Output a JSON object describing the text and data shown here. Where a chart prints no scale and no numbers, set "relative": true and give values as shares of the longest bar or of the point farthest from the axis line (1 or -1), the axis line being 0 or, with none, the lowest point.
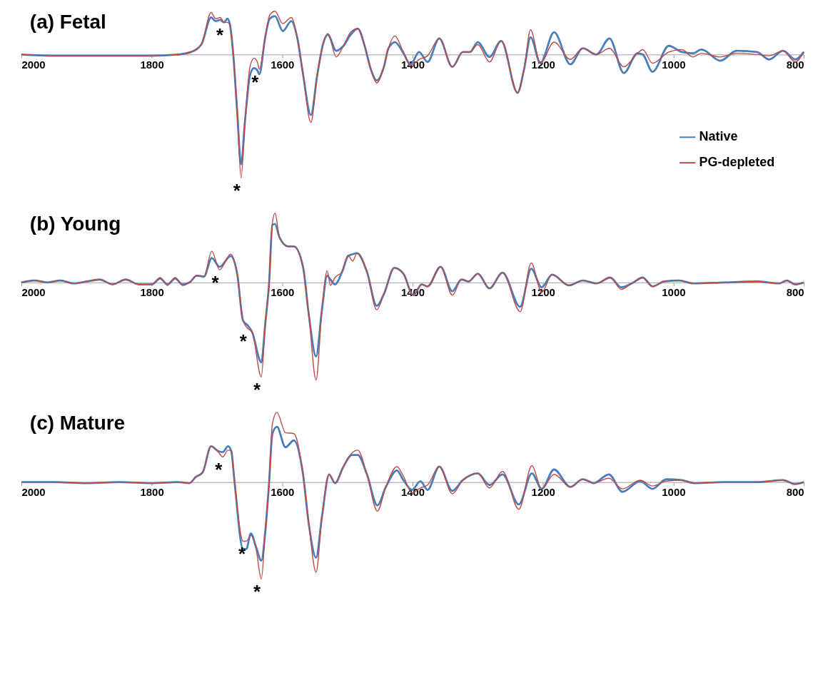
{
  "chart_data": [
    {
      "type": "line",
      "title": "(a) Fetal",
      "relative": true,
      "xlim": [
        2000,
        800
      ],
      "xticks": [
        2000,
        1800,
        1600,
        1400,
        1200,
        1000,
        800
      ],
      "legend": "bottom right",
      "x": [
        2000,
        1950,
        1900,
        1850,
        1800,
        1760,
        1740,
        1724,
        1709,
        1702,
        1695,
        1689,
        1684,
        1680,
        1675,
        1669,
        1663,
        1657,
        1649,
        1643,
        1638,
        1635,
        1626,
        1619,
        1611,
        1599,
        1586,
        1577,
        1568,
        1556,
        1546,
        1537,
        1530,
        1517,
        1506,
        1495,
        1484,
        1473,
        1464,
        1455,
        1444,
        1437,
        1427,
        1415,
        1403,
        1390,
        1377,
        1359,
        1339,
        1323,
        1312,
        1300,
        1282,
        1264,
        1239,
        1229,
        1219,
        1204,
        1183,
        1158,
        1139,
        1118,
        1098,
        1076,
        1055,
        1047,
        1032,
        1007,
        987,
        970,
        957,
        928,
        903,
        872,
        853,
        832,
        813,
        800
      ],
      "series": [
        {
          "name": "Native",
          "color": "#4a7ebb",
          "values": [
            0,
            -0.01,
            -0.01,
            -0.01,
            -0.01,
            0,
            0.02,
            0.08,
            0.3,
            0.27,
            0.28,
            0.26,
            0.29,
            0.24,
            0,
            -0.46,
            -0.89,
            -0.54,
            -0.16,
            -0.11,
            -0.13,
            -0.16,
            0.14,
            0.29,
            0.31,
            0.19,
            0.27,
            0.14,
            -0.16,
            -0.49,
            -0.16,
            0.09,
            0.16,
            0.03,
            0.07,
            0.16,
            0.21,
            0.06,
            -0.12,
            -0.21,
            -0.1,
            0.05,
            0.1,
            0.02,
            -0.08,
            0.02,
            -0.06,
            0.13,
            -0.1,
            0.02,
            0.02,
            0.1,
            -0.02,
            0.11,
            -0.31,
            -0.12,
            0.14,
            -0.07,
            0.18,
            -0.08,
            0.05,
            0,
            0.13,
            -0.15,
            0.01,
            0,
            -0.14,
            0.07,
            0.02,
            0.01,
            0.04,
            -0.05,
            0.03,
            0.02,
            -0.04,
            0.03,
            -0.04,
            0.02
          ]
        },
        {
          "name": "PG-depleted",
          "color": "#be4b48",
          "values": [
            0,
            -0.01,
            -0.01,
            -0.01,
            -0.01,
            0,
            0.02,
            0.08,
            0.34,
            0.29,
            0.3,
            0.26,
            0.26,
            0.24,
            0,
            -0.46,
            -1,
            -0.54,
            -0.09,
            -0.03,
            -0.06,
            -0.12,
            0.14,
            0.32,
            0.35,
            0.25,
            0.3,
            0.14,
            -0.16,
            -0.55,
            -0.16,
            0.09,
            0.17,
            -0.02,
            0.07,
            0.18,
            0.21,
            0.06,
            -0.12,
            -0.23,
            -0.1,
            0.05,
            0.15,
            0.03,
            -0.09,
            -0.04,
            -0.01,
            0.13,
            -0.1,
            0.02,
            0.02,
            0.08,
            -0.06,
            0.11,
            -0.31,
            -0.12,
            0.2,
            -0.07,
            0.1,
            -0.04,
            0.05,
            0,
            0.05,
            -0.1,
            0.01,
            0.04,
            -0.07,
            0.02,
            0.04,
            -0.02,
            0.01,
            -0.02,
            0.01,
            0,
            -0.01,
            0.03,
            -0.06,
            0.02
          ]
        }
      ],
      "annotations": [
        {
          "text": "*",
          "x": 1689,
          "y": 0.26
        },
        {
          "text": "*",
          "x": 1635,
          "y": -0.12
        },
        {
          "text": "*",
          "x": 1663,
          "y": -1
        }
      ]
    },
    {
      "type": "line",
      "title": "(b) Young",
      "relative": true,
      "xlim": [
        2000,
        800
      ],
      "xticks": [
        2000,
        1800,
        1600,
        1400,
        1200,
        1000,
        800
      ],
      "x": [
        2000,
        1980,
        1960,
        1940,
        1920,
        1900,
        1880,
        1860,
        1840,
        1820,
        1800,
        1787,
        1776,
        1764,
        1753,
        1742,
        1731,
        1720,
        1708,
        1696,
        1679,
        1669,
        1660,
        1653,
        1646,
        1632,
        1626,
        1620,
        1615,
        1611,
        1604,
        1591,
        1582,
        1568,
        1559,
        1548,
        1539,
        1531,
        1526,
        1519,
        1508,
        1499,
        1492,
        1485,
        1470,
        1455,
        1444,
        1428,
        1414,
        1399,
        1386,
        1377,
        1357,
        1339,
        1325,
        1314,
        1300,
        1282,
        1262,
        1235,
        1218,
        1202,
        1186,
        1160,
        1139,
        1118,
        1097,
        1080,
        1064,
        1047,
        1032,
        1014,
        991,
        970,
        922,
        872,
        838,
        826,
        813,
        800
      ],
      "series": [
        {
          "color": "#4a7ebb",
          "values": [
            0,
            0.02,
            0,
            0.02,
            -0.01,
            0.01,
            0.03,
            -0.02,
            0.03,
            -0.02,
            -0.02,
            0.04,
            -0.02,
            0.04,
            -0.02,
            0,
            0.07,
            0.06,
            0.25,
            0.16,
            0.27,
            0.09,
            -0.39,
            -0.44,
            -0.51,
            -0.82,
            -0.43,
            0,
            0.59,
            0.6,
            0.46,
            0.37,
            0.37,
            0.16,
            -0.34,
            -0.76,
            -0.28,
            0.07,
            0.03,
            -0.02,
            0.11,
            0.27,
            0.29,
            0.3,
            0.11,
            -0.24,
            -0.12,
            0.15,
            0.09,
            -0.13,
            -0.02,
            -0.04,
            0.16,
            -0.09,
            0.03,
            0.01,
            0.09,
            -0.06,
            0.1,
            -0.25,
            0.14,
            -0.05,
            0.08,
            -0.03,
            0.02,
            -0.01,
            0.05,
            -0.05,
            -0.01,
            0.05,
            -0.04,
            0.01,
            0.02,
            -0.01,
            0,
            0.01,
            -0.01,
            0.02,
            -0.02,
            0
          ]
        },
        {
          "color": "#be4b48",
          "values": [
            0,
            0.02,
            0,
            0.02,
            -0.01,
            0.01,
            0.03,
            -0.02,
            0.03,
            -0.02,
            -0.02,
            0.05,
            -0.03,
            0.05,
            -0.03,
            0,
            0.07,
            0.06,
            0.32,
            0.13,
            0.29,
            0.09,
            -0.39,
            -0.47,
            -0.51,
            -0.97,
            -0.43,
            0,
            0.61,
            0.71,
            0.46,
            0.37,
            0.37,
            0.16,
            -0.34,
            -1,
            -0.28,
            0.12,
            -0.03,
            0.05,
            0.11,
            0.28,
            0.22,
            0.3,
            0.11,
            -0.28,
            -0.12,
            0.15,
            0.09,
            -0.13,
            -0.02,
            -0.04,
            0.16,
            -0.13,
            0.03,
            0.01,
            0.09,
            -0.06,
            0.1,
            -0.3,
            0.2,
            -0.1,
            0.08,
            -0.03,
            0.02,
            -0.01,
            0.05,
            -0.07,
            -0.01,
            0.05,
            -0.04,
            0.01,
            0.02,
            -0.01,
            0,
            0.01,
            -0.01,
            0.02,
            -0.02,
            0
          ]
        }
      ],
      "annotations": [
        {
          "text": "*",
          "x": 1696,
          "y": 0.13
        },
        {
          "text": "*",
          "x": 1653,
          "y": -0.47
        },
        {
          "text": "*",
          "x": 1632,
          "y": -0.97
        }
      ]
    },
    {
      "type": "line",
      "title": "(c) Mature",
      "relative": true,
      "xlim": [
        2000,
        800
      ],
      "xticks": [
        2000,
        1800,
        1600,
        1400,
        1200,
        1000,
        800
      ],
      "x": [
        2000,
        1950,
        1900,
        1850,
        1800,
        1760,
        1742,
        1733,
        1722,
        1709,
        1698,
        1691,
        1683,
        1678,
        1673,
        1660,
        1655,
        1648,
        1640,
        1632,
        1626,
        1620,
        1615,
        1608,
        1595,
        1582,
        1568,
        1559,
        1548,
        1539,
        1528,
        1519,
        1506,
        1493,
        1484,
        1470,
        1454,
        1441,
        1424,
        1414,
        1401,
        1388,
        1377,
        1359,
        1339,
        1323,
        1300,
        1282,
        1262,
        1237,
        1217,
        1202,
        1183,
        1158,
        1139,
        1122,
        1099,
        1078,
        1051,
        1032,
        1011,
        987,
        968,
        922,
        872,
        832,
        813,
        800
      ],
      "series": [
        {
          "color": "#4a7ebb",
          "values": [
            0,
            0,
            -0.01,
            0,
            -0.01,
            0,
            -0.01,
            0.05,
            0.1,
            0.37,
            0.32,
            0.31,
            0.37,
            0.32,
            0,
            -0.69,
            -0.69,
            -0.53,
            -0.67,
            -0.81,
            -0.52,
            0,
            0.5,
            0.57,
            0.36,
            0.43,
            0.08,
            -0.44,
            -0.78,
            -0.36,
            0.08,
            -0.01,
            0.16,
            0.28,
            0.28,
            0.08,
            -0.24,
            -0.05,
            0.12,
            0.02,
            -0.08,
            0.01,
            -0.08,
            0.16,
            -0.09,
            0.02,
            0.09,
            -0.03,
            0.08,
            -0.23,
            0.09,
            -0.07,
            0.13,
            -0.05,
            0.03,
            -0.01,
            0.08,
            -0.1,
            0.01,
            -0.07,
            0.03,
            0.02,
            -0.01,
            0,
            0,
            0.02,
            -0.02,
            0
          ]
        },
        {
          "color": "#be4b48",
          "values": [
            0,
            0,
            -0.01,
            0,
            -0.01,
            0,
            -0.01,
            0.05,
            0.1,
            0.37,
            0.31,
            0.26,
            0.33,
            0.32,
            0,
            -0.61,
            -0.61,
            -0.55,
            -0.69,
            -1,
            -0.52,
            0,
            0.6,
            0.72,
            0.51,
            0.5,
            0.08,
            -0.44,
            -0.93,
            -0.36,
            0.08,
            -0.01,
            0.16,
            0.3,
            0.33,
            0.08,
            -0.3,
            -0.05,
            0.16,
            0.06,
            -0.11,
            -0.06,
            -0.03,
            0.16,
            -0.12,
            0.02,
            0.09,
            -0.06,
            0.11,
            -0.28,
            0.17,
            -0.07,
            0.08,
            -0.05,
            0.03,
            -0.01,
            0.04,
            -0.07,
            0.02,
            -0.04,
            0.01,
            0.02,
            -0.01,
            0,
            0,
            0.02,
            -0.02,
            0
          ]
        }
      ],
      "annotations": [
        {
          "text": "*",
          "x": 1691,
          "y": 0.26
        },
        {
          "text": "*",
          "x": 1655,
          "y": -0.61
        },
        {
          "text": "*",
          "x": 1632,
          "y": -1
        }
      ]
    }
  ]
}
